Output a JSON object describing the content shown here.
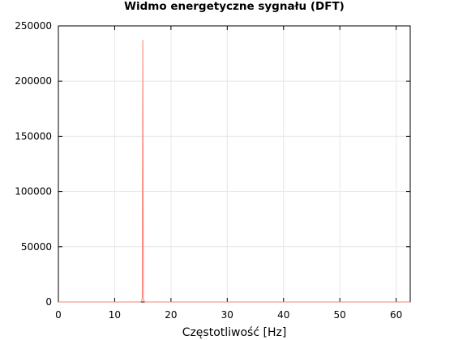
{
  "chart_data": {
    "type": "line",
    "title": "Widmo energetyczne sygnału (DFT)",
    "xlabel": "Częstotliwość [Hz]",
    "ylabel": "",
    "xlim": [
      0,
      62.5
    ],
    "ylim": [
      0,
      250000
    ],
    "xticks": [
      0,
      10,
      20,
      30,
      40,
      50,
      60
    ],
    "yticks": [
      0,
      50000,
      100000,
      150000,
      200000,
      250000
    ],
    "grid": true,
    "series": [
      {
        "color": "#fa8072",
        "x": [
          0,
          14.6,
          14.75,
          14.9,
          15.0,
          15.1,
          15.25,
          15.4,
          62.5
        ],
        "y": [
          0,
          0,
          500,
          3000,
          237000,
          3000,
          500,
          0,
          0
        ]
      }
    ]
  }
}
